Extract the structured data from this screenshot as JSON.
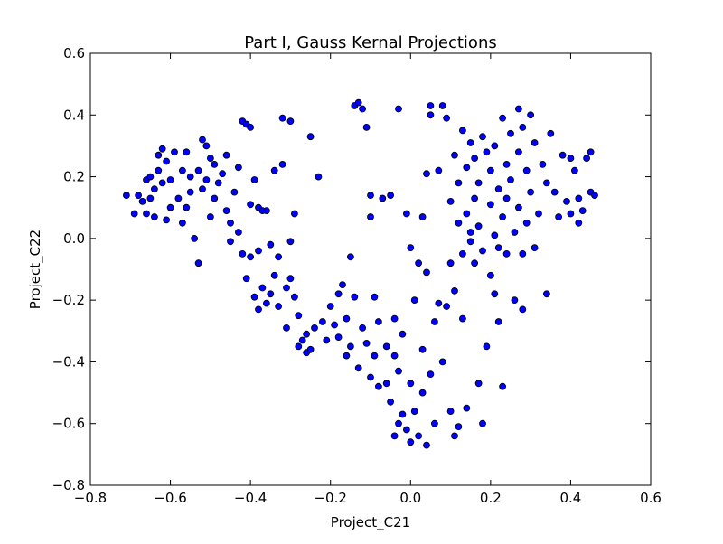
{
  "chart_data": {
    "type": "scatter",
    "title": "Part I, Gauss Kernal Projections",
    "xlabel": "Project_C21",
    "ylabel": "Project_C22",
    "xlim": [
      -0.8,
      0.6
    ],
    "ylim": [
      -0.8,
      0.6
    ],
    "xticks": [
      -0.8,
      -0.6,
      -0.4,
      -0.2,
      0.0,
      0.2,
      0.4,
      0.6
    ],
    "yticks": [
      -0.8,
      -0.6,
      -0.4,
      -0.2,
      0.0,
      0.2,
      0.4,
      0.6
    ],
    "xtick_labels": [
      "−0.8",
      "−0.6",
      "−0.4",
      "−0.2",
      "0.0",
      "0.2",
      "0.4",
      "0.6"
    ],
    "ytick_labels": [
      "−0.8",
      "−0.6",
      "−0.4",
      "−0.2",
      "0.0",
      "0.2",
      "0.4",
      "0.6"
    ],
    "grid": false,
    "legend": "none",
    "marker_color": "#0000ff",
    "marker_edge_color": "#000000",
    "points": [
      [
        -0.71,
        0.14
      ],
      [
        -0.69,
        0.08
      ],
      [
        -0.68,
        0.14
      ],
      [
        -0.67,
        0.12
      ],
      [
        -0.66,
        0.08
      ],
      [
        -0.66,
        0.19
      ],
      [
        -0.65,
        0.13
      ],
      [
        -0.65,
        0.2
      ],
      [
        -0.64,
        0.16
      ],
      [
        -0.64,
        0.07
      ],
      [
        -0.63,
        0.27
      ],
      [
        -0.63,
        0.22
      ],
      [
        -0.62,
        0.18
      ],
      [
        -0.62,
        0.29
      ],
      [
        -0.61,
        0.25
      ],
      [
        -0.61,
        0.06
      ],
      [
        -0.6,
        0.19
      ],
      [
        -0.6,
        0.1
      ],
      [
        -0.59,
        0.28
      ],
      [
        -0.58,
        0.13
      ],
      [
        -0.57,
        0.22
      ],
      [
        -0.57,
        0.05
      ],
      [
        -0.56,
        0.1
      ],
      [
        -0.56,
        0.28
      ],
      [
        -0.55,
        0.2
      ],
      [
        -0.55,
        0.15
      ],
      [
        -0.54,
        0.0
      ],
      [
        -0.53,
        0.22
      ],
      [
        -0.53,
        -0.08
      ],
      [
        -0.52,
        0.32
      ],
      [
        -0.52,
        0.16
      ],
      [
        -0.51,
        0.3
      ],
      [
        -0.51,
        0.19
      ],
      [
        -0.5,
        0.26
      ],
      [
        -0.5,
        0.07
      ],
      [
        -0.49,
        0.24
      ],
      [
        -0.49,
        0.13
      ],
      [
        -0.48,
        0.18
      ],
      [
        -0.47,
        0.21
      ],
      [
        -0.46,
        0.09
      ],
      [
        -0.46,
        0.27
      ],
      [
        -0.45,
        -0.01
      ],
      [
        -0.45,
        0.05
      ],
      [
        -0.44,
        0.15
      ],
      [
        -0.43,
        0.23
      ],
      [
        -0.43,
        0.02
      ],
      [
        -0.42,
        0.38
      ],
      [
        -0.42,
        -0.05
      ],
      [
        -0.41,
        0.37
      ],
      [
        -0.41,
        -0.13
      ],
      [
        -0.4,
        0.36
      ],
      [
        -0.4,
        0.11
      ],
      [
        -0.4,
        -0.06
      ],
      [
        -0.39,
        0.19
      ],
      [
        -0.39,
        -0.19
      ],
      [
        -0.38,
        0.1
      ],
      [
        -0.38,
        -0.04
      ],
      [
        -0.38,
        -0.23
      ],
      [
        -0.37,
        0.09
      ],
      [
        -0.37,
        -0.16
      ],
      [
        -0.36,
        -0.21
      ],
      [
        -0.36,
        0.09
      ],
      [
        -0.35,
        -0.02
      ],
      [
        -0.35,
        -0.18
      ],
      [
        -0.34,
        -0.12
      ],
      [
        -0.34,
        0.22
      ],
      [
        -0.33,
        -0.22
      ],
      [
        -0.33,
        -0.06
      ],
      [
        -0.32,
        0.24
      ],
      [
        -0.32,
        0.39
      ],
      [
        -0.31,
        -0.16
      ],
      [
        -0.31,
        -0.29
      ],
      [
        -0.3,
        0.38
      ],
      [
        -0.3,
        -0.01
      ],
      [
        -0.3,
        -0.13
      ],
      [
        -0.29,
        -0.19
      ],
      [
        -0.29,
        0.08
      ],
      [
        -0.28,
        -0.25
      ],
      [
        -0.28,
        -0.35
      ],
      [
        -0.27,
        -0.33
      ],
      [
        -0.26,
        -0.31
      ],
      [
        -0.26,
        -0.37
      ],
      [
        -0.25,
        0.33
      ],
      [
        -0.25,
        -0.36
      ],
      [
        -0.24,
        -0.29
      ],
      [
        -0.23,
        0.2
      ],
      [
        -0.22,
        -0.27
      ],
      [
        -0.21,
        -0.33
      ],
      [
        -0.2,
        -0.22
      ],
      [
        -0.19,
        -0.28
      ],
      [
        -0.18,
        -0.18
      ],
      [
        -0.18,
        -0.32
      ],
      [
        -0.17,
        -0.15
      ],
      [
        -0.16,
        -0.38
      ],
      [
        -0.16,
        -0.26
      ],
      [
        -0.15,
        -0.06
      ],
      [
        -0.15,
        -0.35
      ],
      [
        -0.14,
        -0.19
      ],
      [
        -0.14,
        0.43
      ],
      [
        -0.13,
        0.44
      ],
      [
        -0.13,
        -0.42
      ],
      [
        -0.12,
        0.42
      ],
      [
        -0.12,
        -0.29
      ],
      [
        -0.11,
        0.36
      ],
      [
        -0.11,
        -0.34
      ],
      [
        -0.1,
        0.14
      ],
      [
        -0.1,
        -0.45
      ],
      [
        -0.1,
        0.07
      ],
      [
        -0.09,
        -0.38
      ],
      [
        -0.09,
        -0.19
      ],
      [
        -0.08,
        -0.48
      ],
      [
        -0.08,
        -0.27
      ],
      [
        -0.07,
        0.13
      ],
      [
        -0.06,
        -0.35
      ],
      [
        -0.06,
        -0.47
      ],
      [
        -0.05,
        0.14
      ],
      [
        -0.05,
        -0.53
      ],
      [
        -0.04,
        -0.38
      ],
      [
        -0.04,
        -0.26
      ],
      [
        -0.04,
        -0.64
      ],
      [
        -0.03,
        -0.6
      ],
      [
        -0.03,
        0.42
      ],
      [
        -0.03,
        -0.43
      ],
      [
        -0.02,
        -0.57
      ],
      [
        -0.02,
        -0.31
      ],
      [
        -0.01,
        -0.62
      ],
      [
        -0.01,
        0.08
      ],
      [
        0.0,
        -0.47
      ],
      [
        0.0,
        -0.66
      ],
      [
        0.0,
        -0.03
      ],
      [
        0.01,
        -0.56
      ],
      [
        0.01,
        -0.2
      ],
      [
        0.02,
        -0.64
      ],
      [
        0.02,
        -0.08
      ],
      [
        0.03,
        -0.36
      ],
      [
        0.03,
        -0.5
      ],
      [
        0.03,
        0.07
      ],
      [
        0.04,
        -0.67
      ],
      [
        0.04,
        -0.11
      ],
      [
        0.04,
        0.21
      ],
      [
        0.05,
        0.43
      ],
      [
        0.05,
        -0.44
      ],
      [
        0.05,
        0.4
      ],
      [
        0.06,
        -0.6
      ],
      [
        0.06,
        -0.27
      ],
      [
        0.07,
        0.22
      ],
      [
        0.07,
        -0.21
      ],
      [
        0.08,
        0.43
      ],
      [
        0.08,
        -0.4
      ],
      [
        0.09,
        0.39
      ],
      [
        0.09,
        -0.22
      ],
      [
        0.1,
        -0.56
      ],
      [
        0.1,
        -0.08
      ],
      [
        0.1,
        0.12
      ],
      [
        0.11,
        -0.64
      ],
      [
        0.11,
        0.27
      ],
      [
        0.11,
        -0.17
      ],
      [
        0.12,
        0.05
      ],
      [
        0.12,
        0.18
      ],
      [
        0.12,
        -0.61
      ],
      [
        0.13,
        0.35
      ],
      [
        0.13,
        -0.05
      ],
      [
        0.13,
        -0.26
      ],
      [
        0.14,
        0.23
      ],
      [
        0.14,
        0.08
      ],
      [
        0.14,
        -0.55
      ],
      [
        0.15,
        0.31
      ],
      [
        0.15,
        0.02
      ],
      [
        0.15,
        -0.01
      ],
      [
        0.16,
        0.13
      ],
      [
        0.16,
        0.26
      ],
      [
        0.16,
        -0.08
      ],
      [
        0.17,
        -0.47
      ],
      [
        0.17,
        0.18
      ],
      [
        0.17,
        0.04
      ],
      [
        0.18,
        0.33
      ],
      [
        0.18,
        -0.04
      ],
      [
        0.18,
        -0.6
      ],
      [
        0.19,
        0.28
      ],
      [
        0.19,
        -0.35
      ],
      [
        0.2,
        0.11
      ],
      [
        0.2,
        0.22
      ],
      [
        0.2,
        -0.12
      ],
      [
        0.21,
        0.01
      ],
      [
        0.21,
        0.3
      ],
      [
        0.21,
        -0.18
      ],
      [
        0.22,
        0.16
      ],
      [
        0.22,
        -0.03
      ],
      [
        0.22,
        -0.27
      ],
      [
        0.23,
        0.39
      ],
      [
        0.23,
        0.07
      ],
      [
        0.23,
        -0.48
      ],
      [
        0.24,
        0.24
      ],
      [
        0.24,
        0.13
      ],
      [
        0.24,
        -0.05
      ],
      [
        0.25,
        0.34
      ],
      [
        0.25,
        0.19
      ],
      [
        0.26,
        0.02
      ],
      [
        0.26,
        -0.2
      ],
      [
        0.27,
        0.42
      ],
      [
        0.27,
        0.28
      ],
      [
        0.27,
        0.1
      ],
      [
        0.28,
        0.36
      ],
      [
        0.28,
        -0.05
      ],
      [
        0.28,
        -0.23
      ],
      [
        0.29,
        0.22
      ],
      [
        0.29,
        0.05
      ],
      [
        0.3,
        0.4
      ],
      [
        0.3,
        0.15
      ],
      [
        0.31,
        0.31
      ],
      [
        0.31,
        -0.03
      ],
      [
        0.32,
        0.08
      ],
      [
        0.33,
        0.24
      ],
      [
        0.34,
        0.18
      ],
      [
        0.34,
        -0.18
      ],
      [
        0.35,
        0.34
      ],
      [
        0.36,
        0.15
      ],
      [
        0.37,
        0.07
      ],
      [
        0.38,
        0.27
      ],
      [
        0.39,
        0.12
      ],
      [
        0.4,
        0.26
      ],
      [
        0.4,
        0.08
      ],
      [
        0.41,
        0.22
      ],
      [
        0.42,
        0.13
      ],
      [
        0.42,
        0.05
      ],
      [
        0.43,
        0.09
      ],
      [
        0.44,
        0.26
      ],
      [
        0.45,
        0.15
      ],
      [
        0.45,
        0.28
      ],
      [
        0.46,
        0.14
      ]
    ]
  }
}
